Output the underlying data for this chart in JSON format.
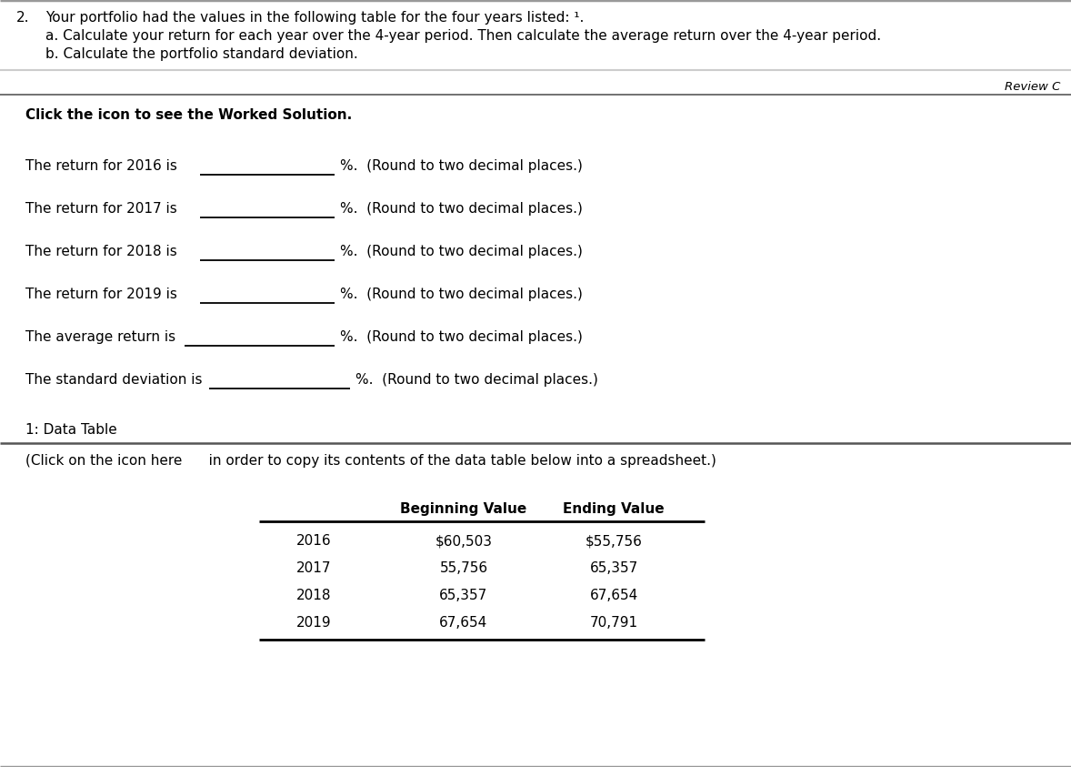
{
  "bg_color": "#ffffff",
  "question_number": "2.",
  "question_text_line1": "Your portfolio had the values in the following table for the four years listed: ¹.",
  "question_text_line2a": "a. Calculate your return for each year over the 4-year period. Then calculate the average return over the 4-year period.",
  "question_text_line2b": "b. Calculate the portfolio standard deviation.",
  "review_text": "Review C",
  "worked_solution_text": "Click the icon to see the Worked Solution.",
  "return_lines": [
    "The return for 2016 is",
    "The return for 2017 is",
    "The return for 2018 is",
    "The return for 2019 is",
    "The average return is",
    "The standard deviation is"
  ],
  "return_suffix": "%.  (Round to two decimal places.)",
  "data_table_header": "1: Data Table",
  "click_icon_text": "(Click on the icon here      in order to copy its contents of the data table below into a spreadsheet.)",
  "table_col_headers": [
    "",
    "Beginning Value",
    "Ending Value"
  ],
  "table_rows": [
    [
      "2016",
      "$60,503",
      "$55,756"
    ],
    [
      "2017",
      "55,756",
      "65,357"
    ],
    [
      "2018",
      "65,357",
      "67,654"
    ],
    [
      "2019",
      "67,654",
      "70,791"
    ]
  ],
  "underline_color": "#000000",
  "dark_line_color": "#000000",
  "text_color": "#000000",
  "font_size_question": 11.0,
  "font_size_body": 11.0,
  "font_size_review": 9.5,
  "font_size_table": 11.0,
  "fig_width": 11.78,
  "fig_height": 8.5,
  "dpi": 100
}
